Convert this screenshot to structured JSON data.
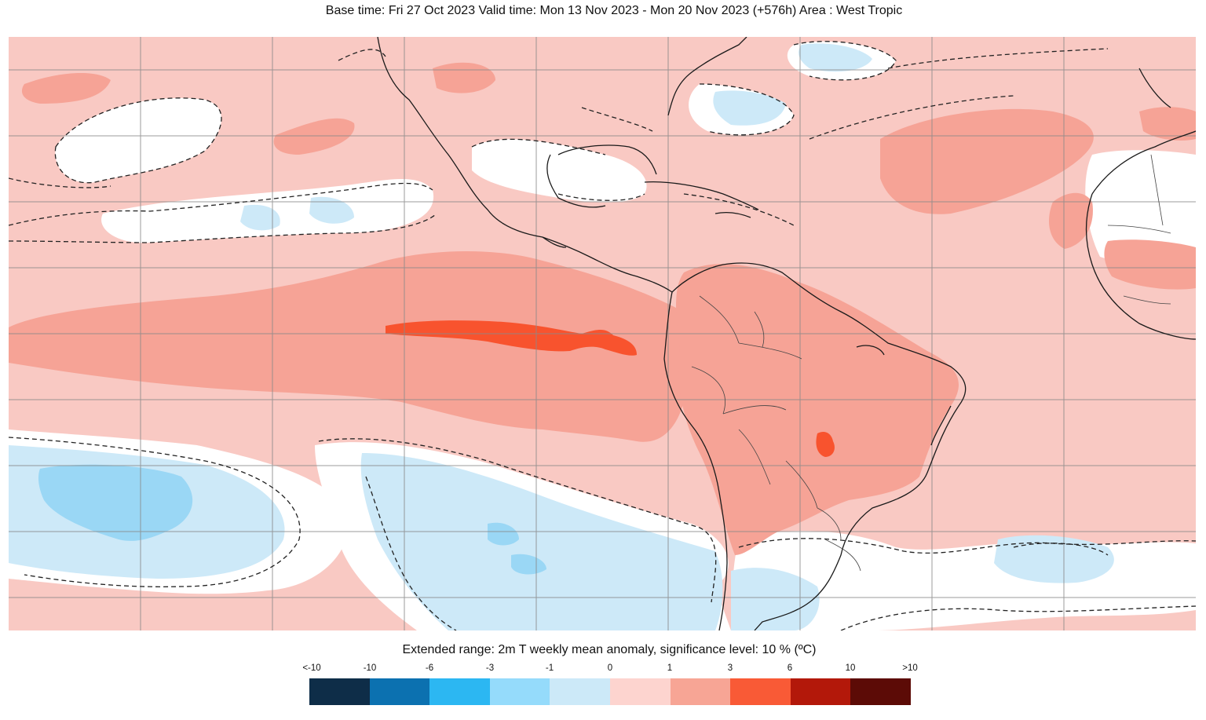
{
  "header": {
    "title": "Base time: Fri 27 Oct 2023 Valid time: Mon 13 Nov 2023 - Mon 20 Nov 2023 (+576h) Area : West Tropic"
  },
  "legend": {
    "title": "Extended range: 2m T weekly mean anomaly, significance level: 10 % (ºC)",
    "tick_labels": [
      "<-10",
      "-10",
      "-6",
      "-3",
      "-1",
      "0",
      "1",
      "3",
      "6",
      "10",
      ">10"
    ],
    "colors": [
      "#0e2d48",
      "#0c71b0",
      "#2cb7f2",
      "#95dbfb",
      "#cce9f8",
      "#fdd4cf",
      "#f7a595",
      "#f95a36",
      "#b3180a",
      "#5c0b06"
    ]
  },
  "map": {
    "region": "West Tropic",
    "variable": "2m temperature weekly mean anomaly",
    "colors": {
      "background_anomaly": "#f9c9c3",
      "warm_mid": "#f6a396",
      "warm_strong": "#f8532e",
      "neutral": "#ffffff",
      "cool_light": "#cde9f8",
      "cool_mid": "#9ad7f5",
      "coast": "#1a1a1a",
      "grid": "#8a8a8a"
    }
  }
}
